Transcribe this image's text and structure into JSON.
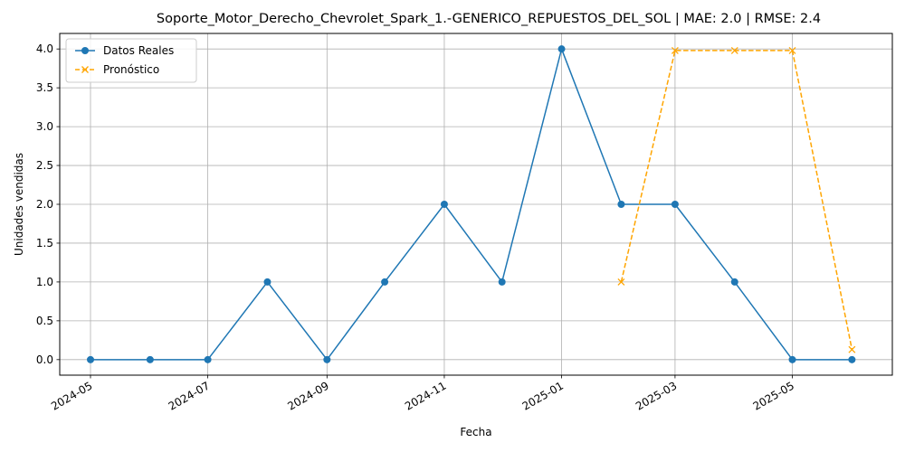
{
  "chart_data": {
    "type": "line",
    "title": "Soporte_Motor_Derecho_Chevrolet_Spark_1.-GENERICO_REPUESTOS_DEL_SOL | MAE: 2.0 | RMSE: 2.4",
    "xlabel": "Fecha",
    "ylabel": "Unidades vendidas",
    "ylim": [
      -0.2,
      4.2
    ],
    "xlim": [
      "2024-04-15",
      "2025-06-22"
    ],
    "yticks": [
      0.0,
      0.5,
      1.0,
      1.5,
      2.0,
      2.5,
      3.0,
      3.5,
      4.0
    ],
    "yticklabels": [
      "0.0",
      "0.5",
      "1.0",
      "1.5",
      "2.0",
      "2.5",
      "3.0",
      "3.5",
      "4.0"
    ],
    "xticks": [
      "2024-05-01",
      "2024-07-01",
      "2024-09-01",
      "2024-11-01",
      "2025-01-01",
      "2025-03-01",
      "2025-05-01"
    ],
    "xticklabels": [
      "2024-05",
      "2024-07",
      "2024-09",
      "2024-11",
      "2025-01",
      "2025-03",
      "2025-05"
    ],
    "grid": true,
    "legend_position": "upper-left",
    "series": [
      {
        "name": "Datos Reales",
        "color": "#1f77b4",
        "style": "solid",
        "marker": "circle",
        "x": [
          "2024-05-01",
          "2024-06-01",
          "2024-07-01",
          "2024-08-01",
          "2024-09-01",
          "2024-10-01",
          "2024-11-01",
          "2024-12-01",
          "2025-01-01",
          "2025-02-01",
          "2025-03-01",
          "2025-04-01",
          "2025-05-01",
          "2025-06-01"
        ],
        "y": [
          0,
          0,
          0,
          1,
          0,
          1,
          2,
          1,
          4,
          2,
          2,
          1,
          0,
          0
        ]
      },
      {
        "name": "Pronóstico",
        "color": "#ffa500",
        "style": "dashed",
        "marker": "x",
        "x": [
          "2025-02-01",
          "2025-03-01",
          "2025-04-01",
          "2025-05-01",
          "2025-06-01"
        ],
        "y": [
          1.0,
          3.98,
          3.98,
          3.98,
          0.13
        ]
      }
    ]
  }
}
